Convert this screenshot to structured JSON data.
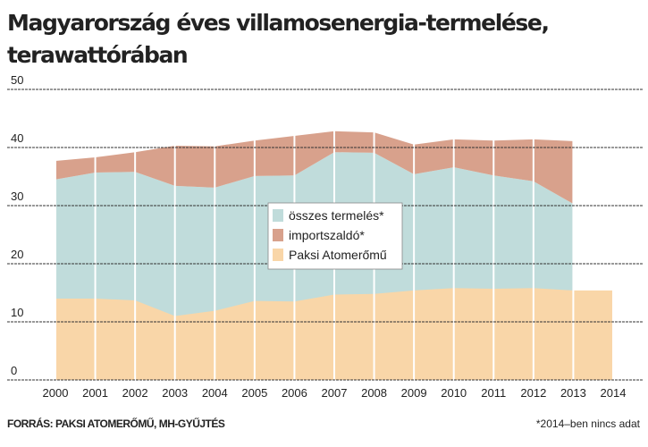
{
  "chart_data": {
    "type": "area",
    "title": "Magyarország éves villamosenergia-termelése,",
    "subtitle": "terawattórában",
    "categories": [
      "2000",
      "2001",
      "2002",
      "2003",
      "2004",
      "2005",
      "2006",
      "2007",
      "2008",
      "2009",
      "2010",
      "2011",
      "2012",
      "2013",
      "2014"
    ],
    "series": [
      {
        "name": "összes termelés*",
        "color": "#c0dcdb",
        "values": [
          34.5,
          35.7,
          35.8,
          33.4,
          33.1,
          35.1,
          35.2,
          39.2,
          39.1,
          35.4,
          36.6,
          35.2,
          34.2,
          30.3,
          null
        ]
      },
      {
        "name": "importszaldó*",
        "color": "#d8a18c",
        "values": [
          3.2,
          2.6,
          3.4,
          6.9,
          7.1,
          6.1,
          6.8,
          3.6,
          3.5,
          5.1,
          4.8,
          6.0,
          7.2,
          10.8,
          null
        ]
      },
      {
        "name": "Paksi Atomerőmű",
        "color": "#f9d6a8",
        "values": [
          14.0,
          14.0,
          13.7,
          11.0,
          11.9,
          13.6,
          13.5,
          14.7,
          14.8,
          15.4,
          15.8,
          15.7,
          15.8,
          15.4,
          15.4
        ]
      }
    ],
    "ylim": [
      0,
      50
    ],
    "yticks": [
      0,
      10,
      20,
      30,
      40,
      50
    ],
    "grid": true,
    "source": "FORRÁS: PAKSI ATOMERŐMŰ, MH-GYŰJTÉS",
    "note": "*2014–ben nincs adat"
  }
}
